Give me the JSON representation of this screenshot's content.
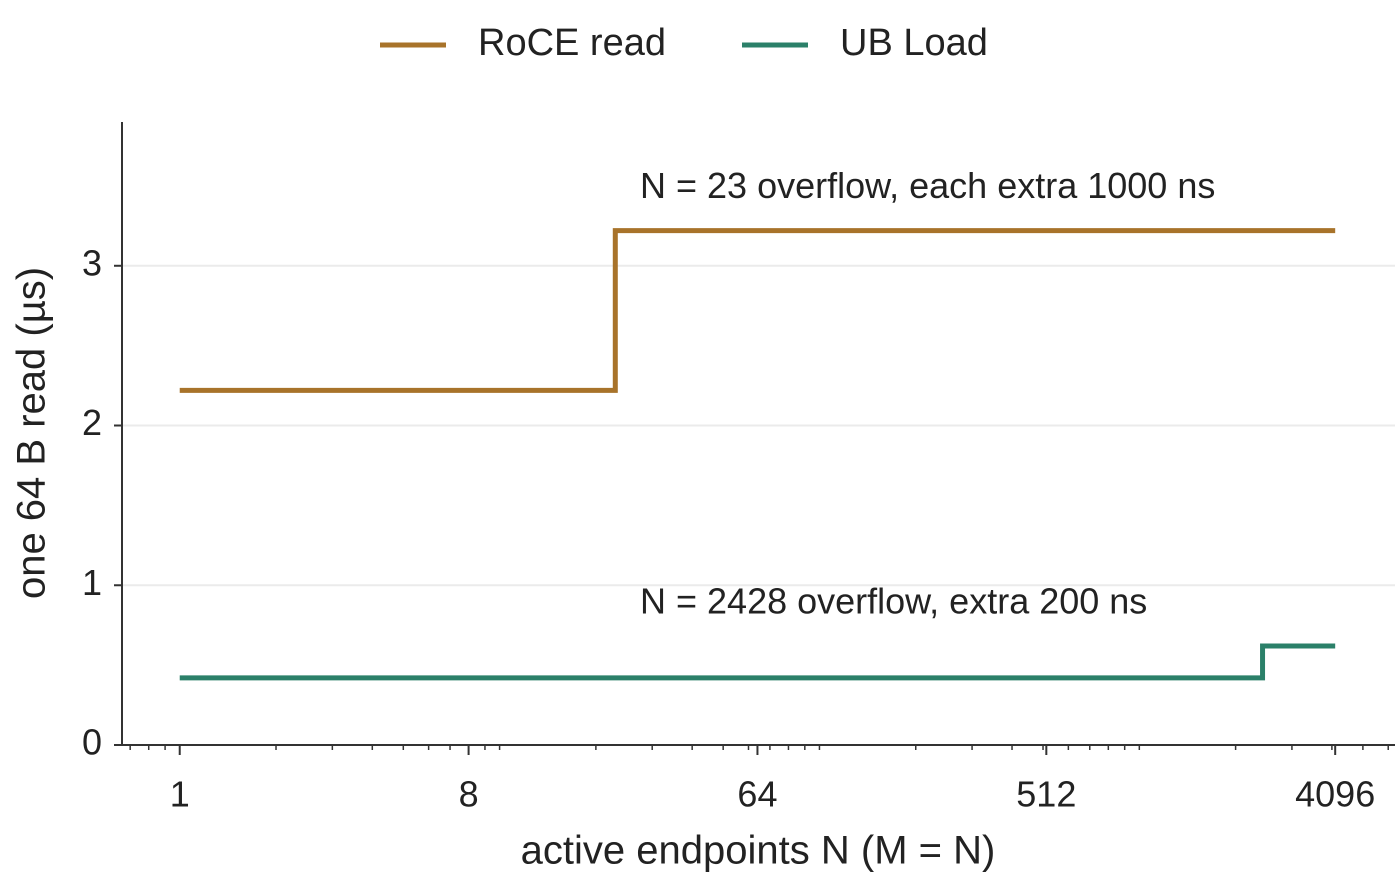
{
  "chart_data": {
    "type": "line",
    "x_label": "active endpoints N (M = N)",
    "y_label": "one 64 B read (µs)",
    "annotations": [
      "N = 23 overflow, each extra 1000 ns",
      "N = 2428 overflow, extra 200 ns"
    ],
    "series": [
      {
        "name": "RoCE read",
        "color": "#a8732a",
        "x": [
          1,
          23,
          23,
          4096
        ],
        "values": [
          2.22,
          2.22,
          3.22,
          3.22
        ]
      },
      {
        "name": "UB Load",
        "color": "#2b8069",
        "x": [
          1,
          2428,
          2428,
          4096
        ],
        "values": [
          0.42,
          0.42,
          0.62,
          0.62
        ]
      }
    ],
    "xscale": "log",
    "xlim": [
      0.66,
      6300
    ],
    "xticks": [
      1,
      8,
      64,
      512,
      4096
    ],
    "xminorticks": [
      0.7,
      0.8,
      0.9,
      2,
      3,
      4,
      5,
      6,
      7,
      9,
      10,
      20,
      30,
      40,
      50,
      60,
      70,
      80,
      90,
      100,
      200,
      300,
      400,
      500,
      600,
      700,
      800,
      900,
      1000,
      2000,
      3000,
      4000,
      5000,
      6000
    ],
    "ylim": [
      0,
      3.9
    ],
    "yticks": [
      0,
      1,
      2,
      3
    ],
    "grid": true,
    "legend": "top"
  }
}
